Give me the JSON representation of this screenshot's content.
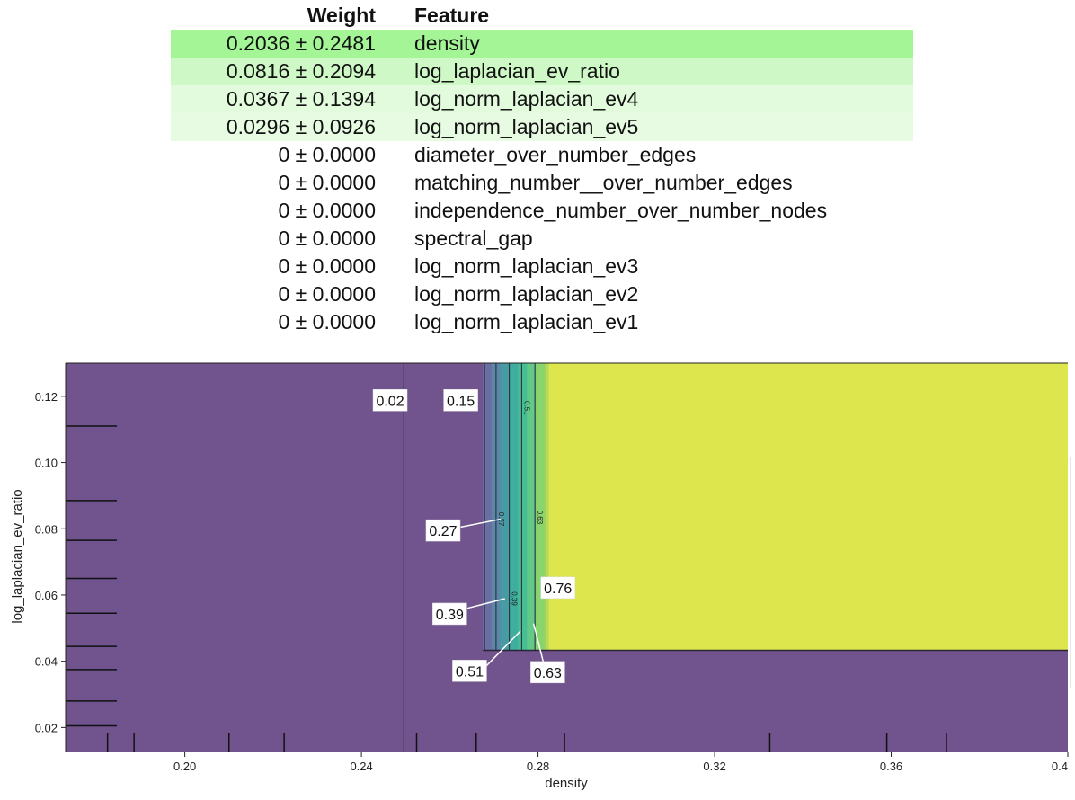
{
  "weights_table": {
    "headers": {
      "weight": "Weight",
      "feature": "Feature"
    },
    "rows": [
      {
        "weight": "0.2036 ± 0.2481",
        "feature": "density",
        "color": "#a3f596"
      },
      {
        "weight": "0.0816 ± 0.2094",
        "feature": "log_laplacian_ev_ratio",
        "color": "#cff8c7"
      },
      {
        "weight": "0.0367 ± 0.1394",
        "feature": "log_norm_laplacian_ev4",
        "color": "#e2fbdc"
      },
      {
        "weight": "0.0296 ± 0.0926",
        "feature": "log_norm_laplacian_ev5",
        "color": "#e6fbe1"
      },
      {
        "weight": "0 ± 0.0000",
        "feature": "diameter_over_number_edges",
        "color": ""
      },
      {
        "weight": "0 ± 0.0000",
        "feature": "matching_number__over_number_edges",
        "color": ""
      },
      {
        "weight": "0 ± 0.0000",
        "feature": "independence_number_over_number_nodes",
        "color": ""
      },
      {
        "weight": "0 ± 0.0000",
        "feature": "spectral_gap",
        "color": ""
      },
      {
        "weight": "0 ± 0.0000",
        "feature": "log_norm_laplacian_ev3",
        "color": ""
      },
      {
        "weight": "0 ± 0.0000",
        "feature": "log_norm_laplacian_ev2",
        "color": ""
      },
      {
        "weight": "0 ± 0.0000",
        "feature": "log_norm_laplacian_ev1",
        "color": ""
      }
    ]
  },
  "chart_data": {
    "type": "heatmap",
    "xlabel": "density",
    "ylabel": "log_laplacian_ev_ratio",
    "xlim": [
      0.173,
      0.4
    ],
    "ylim": [
      0.0125,
      0.13
    ],
    "xticks": [
      0.2,
      0.24,
      0.28,
      0.32,
      0.36,
      0.4
    ],
    "xtick_labels": [
      "0.20",
      "0.24",
      "0.28",
      "0.32",
      "0.36",
      "0.4"
    ],
    "yticks": [
      0.02,
      0.04,
      0.06,
      0.08,
      0.1,
      0.12
    ],
    "ytick_labels": [
      "0.02",
      "0.04",
      "0.06",
      "0.08",
      "0.10",
      "0.12"
    ],
    "background_color": "#71548e",
    "region_y_min": 0.0433,
    "high_color": "#dde64c",
    "bands": [
      {
        "x0": 0.2675,
        "x1": 0.2695,
        "color": "#6a6fa1"
      },
      {
        "x0": 0.2695,
        "x1": 0.2715,
        "color": "#5a88a6"
      },
      {
        "x0": 0.2715,
        "x1": 0.2735,
        "color": "#479ca4"
      },
      {
        "x0": 0.2735,
        "x1": 0.2755,
        "color": "#3fae9f"
      },
      {
        "x0": 0.2755,
        "x1": 0.2775,
        "color": "#48be94"
      },
      {
        "x0": 0.2775,
        "x1": 0.2795,
        "color": "#62c986"
      },
      {
        "x0": 0.2795,
        "x1": 0.2815,
        "color": "#8ad46d"
      },
      {
        "x0": 0.2815,
        "x1": 0.2825,
        "color": "#b7dc5a"
      }
    ],
    "contour_levels": [
      {
        "x": 0.2496,
        "level": "0.02",
        "inline": ""
      },
      {
        "x": 0.2679,
        "level": "0.15",
        "inline": ""
      },
      {
        "x": 0.2705,
        "level": "0.27",
        "inline": "0.27"
      },
      {
        "x": 0.2735,
        "level": "0.39",
        "inline": "0.39"
      },
      {
        "x": 0.2763,
        "level": "0.51",
        "inline": "0.51"
      },
      {
        "x": 0.2793,
        "level": "0.63",
        "inline": "0.63"
      },
      {
        "x": 0.2818,
        "level": "0.76",
        "inline": ""
      }
    ],
    "annotations": [
      {
        "text": "0.02",
        "x": 0.2465,
        "y": 0.1188
      },
      {
        "text": "0.15",
        "x": 0.2625,
        "y": 0.1188
      },
      {
        "text": "0.27",
        "x": 0.2585,
        "y": 0.0795
      },
      {
        "text": "0.39",
        "x": 0.26,
        "y": 0.0543
      },
      {
        "text": "0.51",
        "x": 0.2645,
        "y": 0.0371
      },
      {
        "text": "0.63",
        "x": 0.2822,
        "y": 0.0367
      },
      {
        "text": "0.76",
        "x": 0.2845,
        "y": 0.0622
      }
    ],
    "leader_lines": [
      {
        "x1": 0.2625,
        "y1": 0.0805,
        "x2": 0.2715,
        "y2": 0.0829
      },
      {
        "x1": 0.264,
        "y1": 0.056,
        "x2": 0.2725,
        "y2": 0.0589
      },
      {
        "x1": 0.268,
        "y1": 0.0382,
        "x2": 0.276,
        "y2": 0.0491
      },
      {
        "x1": 0.2815,
        "y1": 0.0382,
        "x2": 0.279,
        "y2": 0.0514
      }
    ],
    "rug_x": [
      0.1825,
      0.1885,
      0.21,
      0.2225,
      0.2525,
      0.266,
      0.286,
      0.3325,
      0.359,
      0.3725
    ],
    "rug_y": [
      0.0205,
      0.028,
      0.0375,
      0.0445,
      0.0545,
      0.065,
      0.0765,
      0.0885,
      0.111
    ]
  }
}
